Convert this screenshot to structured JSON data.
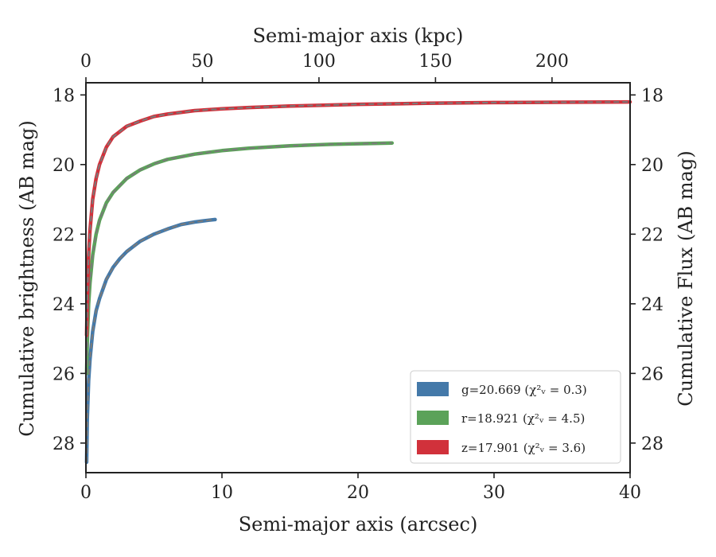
{
  "chart_data": {
    "type": "line",
    "xlabel": "Semi-major axis (arcsec)",
    "x2label": "Semi-major axis (kpc)",
    "ylabel": "Cumulative brightness (AB mag)",
    "y2label": "Cumulative Flux (AB mag)",
    "xlim": [
      0,
      40
    ],
    "x2lim": [
      0,
      233.5
    ],
    "ylim": [
      28.85,
      17.65
    ],
    "y_inverted": true,
    "xticks": [
      "0",
      "10",
      "20",
      "30",
      "40"
    ],
    "x2ticks": [
      "0",
      "50",
      "100",
      "150",
      "200"
    ],
    "yticks": [
      "18",
      "20",
      "22",
      "24",
      "26",
      "28"
    ],
    "y2ticks": [
      "18",
      "20",
      "22",
      "24",
      "26",
      "28"
    ],
    "grid": false,
    "legend_position": "lower-right",
    "series": [
      {
        "name": "g=20.669 (χ²ᵥ = 0.3)",
        "band": "g",
        "color": "#4479a9",
        "x": [
          0.05,
          0.1,
          0.2,
          0.3,
          0.5,
          0.75,
          1.0,
          1.5,
          2.0,
          2.5,
          3.0,
          3.5,
          4.0,
          5.0,
          6.0,
          7.0,
          8.0,
          9.0,
          9.5
        ],
        "y": [
          28.55,
          27.3,
          26.2,
          25.6,
          24.8,
          24.2,
          23.85,
          23.3,
          22.95,
          22.7,
          22.5,
          22.35,
          22.2,
          22.0,
          21.85,
          21.72,
          21.65,
          21.6,
          21.58
        ]
      },
      {
        "name": "r=18.921 (χ²ᵥ = 4.5)",
        "band": "r",
        "color": "#5ba259",
        "x": [
          0.05,
          0.1,
          0.2,
          0.3,
          0.5,
          0.75,
          1.0,
          1.5,
          2.0,
          3.0,
          4.0,
          5.0,
          6.0,
          8.0,
          10.0,
          12.0,
          15.0,
          18.0,
          20.0,
          22.5
        ],
        "y": [
          26.0,
          25.1,
          24.0,
          23.4,
          22.6,
          22.0,
          21.6,
          21.1,
          20.8,
          20.4,
          20.15,
          19.98,
          19.85,
          19.7,
          19.6,
          19.53,
          19.46,
          19.42,
          19.4,
          19.38
        ]
      },
      {
        "name": "z=17.901 (χ²ᵥ = 3.6)",
        "band": "z",
        "color": "#d1313b",
        "x": [
          0.05,
          0.1,
          0.2,
          0.3,
          0.5,
          0.75,
          1.0,
          1.5,
          2.0,
          3.0,
          4.0,
          5.0,
          6.0,
          8.0,
          10.0,
          12.0,
          15.0,
          20.0,
          25.0,
          30.0,
          35.0,
          40.0
        ],
        "y": [
          24.9,
          23.8,
          22.6,
          21.9,
          21.0,
          20.4,
          20.0,
          19.5,
          19.2,
          18.9,
          18.75,
          18.62,
          18.55,
          18.45,
          18.4,
          18.36,
          18.32,
          18.27,
          18.24,
          18.22,
          18.21,
          18.2
        ]
      }
    ],
    "model_line_color": "#7a7a7a"
  },
  "legend": [
    {
      "label": "g=20.669 (χ²ᵥ = 0.3)",
      "color": "#4479a9"
    },
    {
      "label": "r=18.921 (χ²ᵥ = 4.5)",
      "color": "#5ba259"
    },
    {
      "label": "z=17.901 (χ²ᵥ = 3.6)",
      "color": "#d1313b"
    }
  ]
}
